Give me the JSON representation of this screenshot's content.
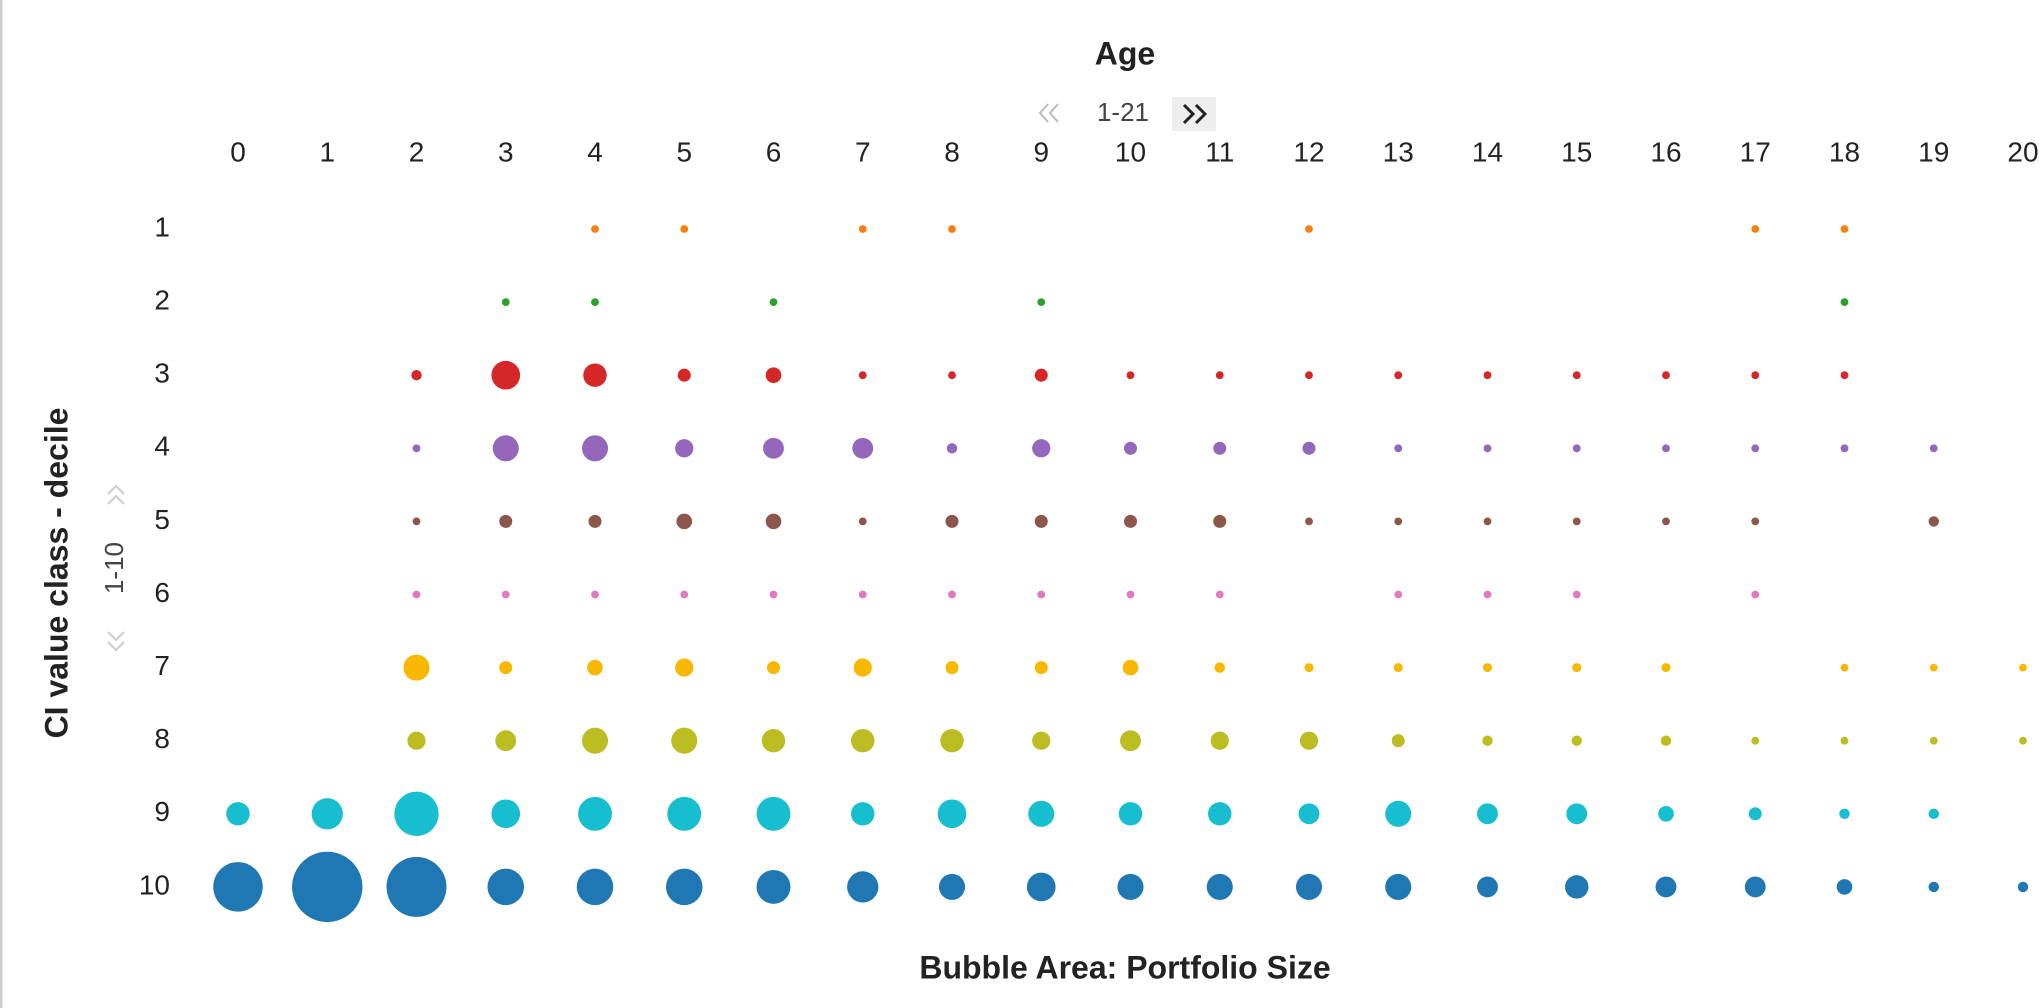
{
  "chart_data": {
    "type": "bubble",
    "x_label": "Age",
    "x_pager": "1-21",
    "y_label": "CI value class - decile",
    "y_pager": "1-10",
    "size_label": "Bubble Area:  Portfolio Size",
    "categories": [
      0,
      1,
      2,
      3,
      4,
      5,
      6,
      7,
      8,
      9,
      10,
      11,
      12,
      13,
      14,
      15,
      16,
      17,
      18,
      19,
      20
    ],
    "series": [
      {
        "name": "1",
        "color": "#ff7f0e",
        "values": [
          null,
          null,
          null,
          null,
          9,
          9,
          null,
          9,
          9,
          null,
          null,
          null,
          9,
          null,
          null,
          null,
          null,
          9,
          9,
          null,
          null
        ]
      },
      {
        "name": "2",
        "color": "#2ca02c",
        "values": [
          null,
          null,
          null,
          9,
          9,
          null,
          9,
          null,
          null,
          9,
          null,
          null,
          null,
          null,
          null,
          null,
          null,
          null,
          9,
          null,
          null
        ]
      },
      {
        "name": "3",
        "color": "#d62728",
        "values": [
          null,
          null,
          16,
          121,
          81,
          25,
          36,
          9,
          9,
          25,
          9,
          9,
          9,
          9,
          9,
          9,
          9,
          9,
          9,
          null,
          null
        ]
      },
      {
        "name": "4",
        "color": "#9467bd",
        "values": [
          null,
          null,
          9,
          100,
          100,
          49,
          64,
          64,
          16,
          49,
          25,
          25,
          25,
          9,
          9,
          9,
          9,
          9,
          9,
          9,
          null
        ]
      },
      {
        "name": "5",
        "color": "#8c564b",
        "values": [
          null,
          null,
          9,
          25,
          25,
          36,
          36,
          9,
          25,
          25,
          25,
          25,
          9,
          9,
          9,
          9,
          9,
          9,
          null,
          16,
          null
        ]
      },
      {
        "name": "6",
        "color": "#e377c2",
        "values": [
          null,
          null,
          9,
          9,
          9,
          9,
          9,
          9,
          9,
          9,
          9,
          9,
          null,
          9,
          9,
          9,
          null,
          9,
          null,
          null,
          null
        ]
      },
      {
        "name": "7",
        "color": "#f8b800",
        "values": [
          null,
          null,
          100,
          25,
          36,
          49,
          25,
          49,
          25,
          25,
          36,
          16,
          12,
          12,
          12,
          12,
          12,
          null,
          9,
          9,
          9
        ]
      },
      {
        "name": "8",
        "color": "#bcbd22",
        "values": [
          null,
          null,
          49,
          64,
          100,
          100,
          81,
          81,
          81,
          49,
          64,
          49,
          49,
          25,
          16,
          16,
          16,
          9,
          9,
          9,
          9
        ]
      },
      {
        "name": "9",
        "color": "#17becf",
        "values": [
          81,
          144,
          289,
          121,
          169,
          169,
          169,
          81,
          121,
          100,
          81,
          81,
          64,
          100,
          64,
          64,
          36,
          25,
          16,
          16,
          null
        ]
      },
      {
        "name": "10",
        "color": "#1f77b4",
        "values": [
          361,
          729,
          529,
          196,
          196,
          196,
          169,
          144,
          100,
          121,
          100,
          100,
          100,
          100,
          64,
          81,
          64,
          64,
          36,
          16,
          16
        ]
      }
    ]
  }
}
